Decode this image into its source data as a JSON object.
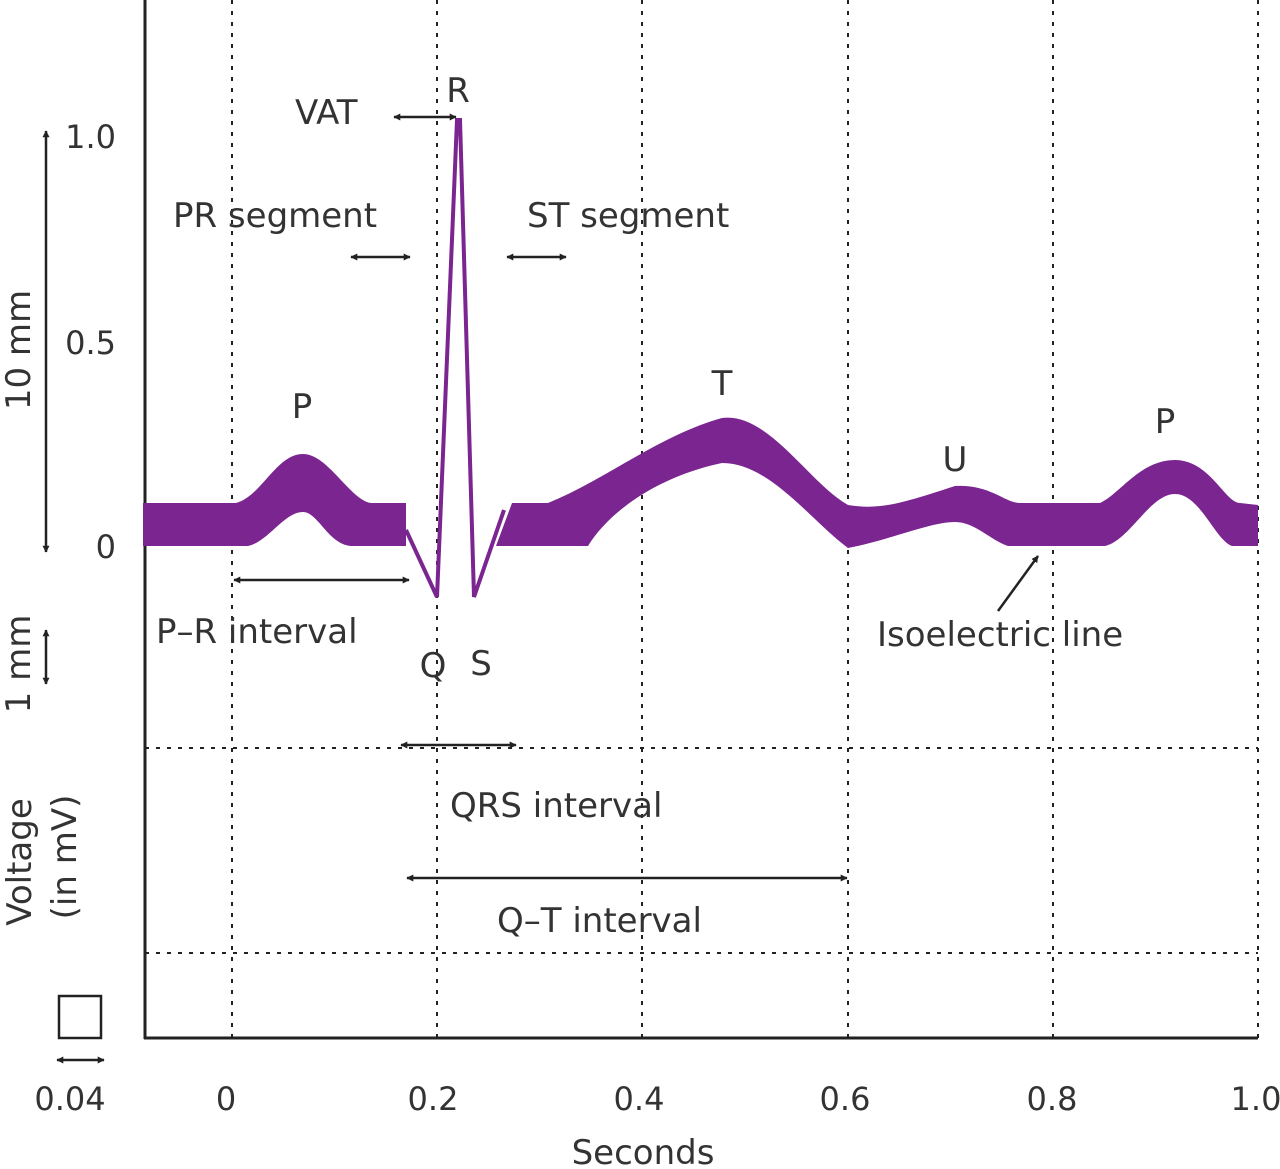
{
  "waves": {
    "p1": "P",
    "r": "R",
    "q": "Q",
    "s": "S",
    "t": "T",
    "u": "U",
    "p2": "P"
  },
  "annotations": {
    "vat": "VAT",
    "pr_segment": "PR segment",
    "st_segment": "ST segment",
    "pr_interval": "P–R interval",
    "isoelectric_line": "Isoelectric line",
    "qrs_interval": "QRS interval",
    "qt_interval": "Q–T interval"
  },
  "y_axis": {
    "ticks": [
      "1.0",
      "0.5",
      "0"
    ],
    "label_line1": "Voltage",
    "label_line2": "(in mV)",
    "scale_10mm": "10 mm",
    "scale_1mm": "1 mm"
  },
  "x_axis": {
    "label": "Seconds",
    "ticks": [
      "0",
      "0.2",
      "0.4",
      "0.6",
      "0.8",
      "1.0"
    ],
    "small_box_value": "0.04"
  },
  "colors": {
    "wave": "#7b2591",
    "lines": "#222222",
    "text": "#333333"
  }
}
